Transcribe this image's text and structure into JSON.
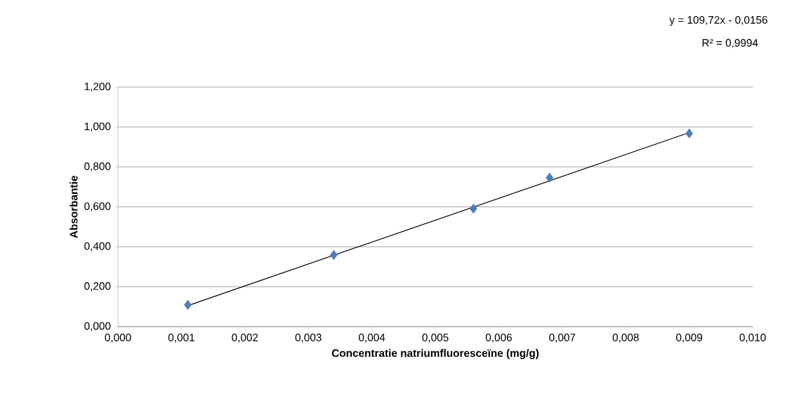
{
  "chart_data": {
    "type": "scatter",
    "xlabel": "Concentratie natriumfluoresceïne (mg/g)",
    "ylabel": "Absorbantie",
    "series": [
      {
        "color": "#4a7ebb",
        "marker": "diamond",
        "x": [
          0.0011,
          0.0034,
          0.0056,
          0.0068,
          0.009
        ],
        "values": [
          0.109,
          0.359,
          0.591,
          0.746,
          0.968
        ]
      },
      {
        "type": "line",
        "color": "#000000",
        "marker": "none",
        "x": [
          0.0011,
          0.009
        ],
        "values": [
          0.105,
          0.972
        ]
      }
    ],
    "annotations": [
      "y = 109,72x - 0,0156",
      "R² = 0,9994"
    ],
    "xlim": [
      0,
      0.01
    ],
    "xticks": [
      {
        "value": 0,
        "label": "0,000"
      },
      {
        "value": 0.001,
        "label": "0,001"
      },
      {
        "value": 0.002,
        "label": "0,002"
      },
      {
        "value": 0.003,
        "label": "0,003"
      },
      {
        "value": 0.004,
        "label": "0,004"
      },
      {
        "value": 0.005,
        "label": "0,005"
      },
      {
        "value": 0.006,
        "label": "0,006"
      },
      {
        "value": 0.007,
        "label": "0,007"
      },
      {
        "value": 0.008,
        "label": "0,008"
      },
      {
        "value": 0.009,
        "label": "0,009"
      },
      {
        "value": 0.01,
        "label": "0,010"
      }
    ],
    "ylim": [
      0,
      1.2
    ],
    "yticks": [
      {
        "value": 0,
        "label": "0,000"
      },
      {
        "value": 0.2,
        "label": "0,200"
      },
      {
        "value": 0.4,
        "label": "0,400"
      },
      {
        "value": 0.6,
        "label": "0,600"
      },
      {
        "value": 0.8,
        "label": "0,800"
      },
      {
        "value": 1.0,
        "label": "1,000"
      },
      {
        "value": 1.2,
        "label": "1,200"
      }
    ],
    "grid": "y"
  }
}
